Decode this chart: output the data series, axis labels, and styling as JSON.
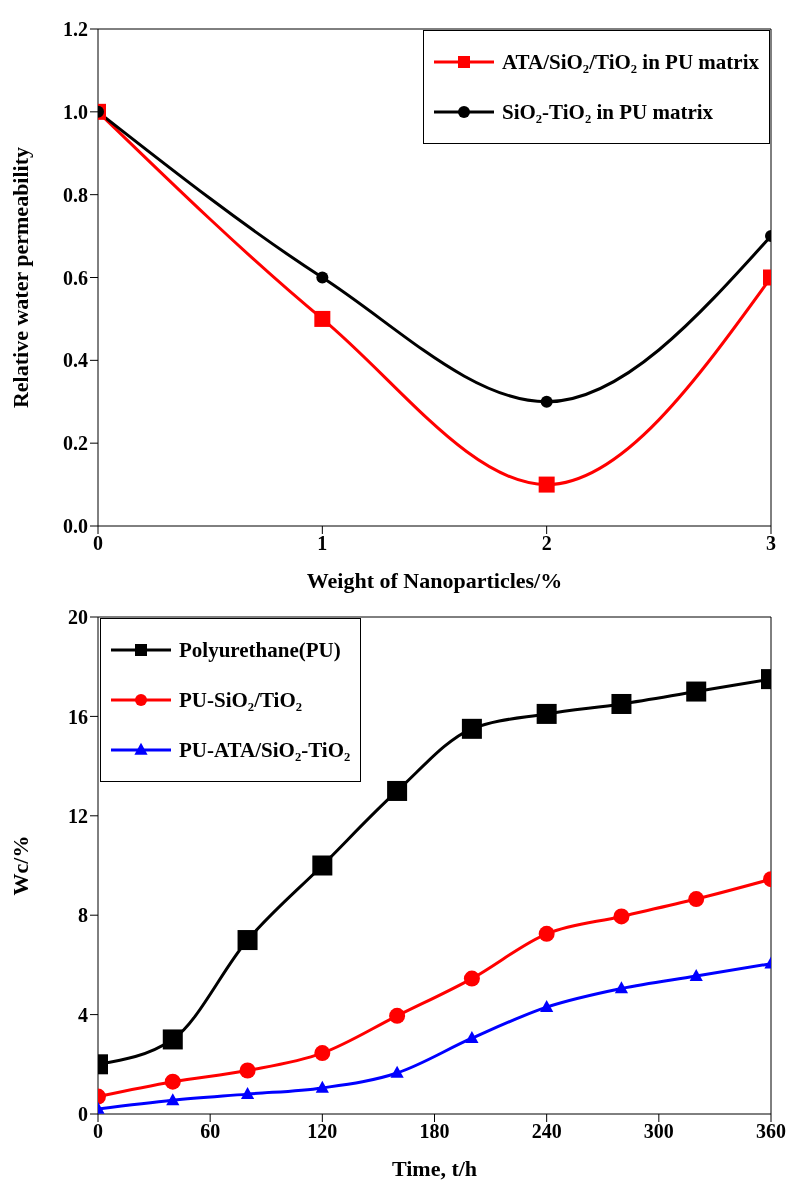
{
  "chart_data": [
    {
      "type": "line",
      "xlabel": "Weight of Nanoparticles/%",
      "ylabel": "Relative water permeability",
      "x": [
        0,
        1,
        2,
        3
      ],
      "series": [
        {
          "name": "ATA/SiO₂/TiO₂ in PU matrix",
          "color": "#ff0000",
          "marker": "square",
          "values": [
            1.0,
            0.5,
            0.1,
            0.6
          ]
        },
        {
          "name": "SiO₂-TiO₂ in PU matrix",
          "color": "#000000",
          "marker": "circle",
          "values": [
            1.0,
            0.6,
            0.3,
            0.7
          ]
        }
      ],
      "xlim": [
        0,
        3
      ],
      "xticks": [
        0,
        1,
        2,
        3
      ],
      "ylim": [
        0,
        1.2
      ],
      "yticks": [
        {
          "value": 0,
          "label": "0.0"
        },
        {
          "value": 0.2,
          "label": "0.2"
        },
        {
          "value": 0.4,
          "label": "0.4"
        },
        {
          "value": 0.6,
          "label": "0.6"
        },
        {
          "value": 0.8,
          "label": "0.8"
        },
        {
          "value": 1,
          "label": "1.0"
        },
        {
          "value": 1.2,
          "label": "1.2"
        }
      ],
      "grid": false,
      "legend": "top right",
      "line_style": "solid"
    },
    {
      "type": "line",
      "xlabel": "Time, t/h",
      "ylabel": "Wc/%",
      "x": [
        0,
        40,
        80,
        120,
        160,
        200,
        240,
        280,
        320,
        360
      ],
      "series": [
        {
          "name": "Polyurethane(PU)",
          "color": "#000000",
          "marker": "square",
          "values": [
            2.0,
            3.0,
            7.0,
            10.0,
            13.0,
            15.5,
            16.1,
            16.5,
            17.0,
            17.5
          ]
        },
        {
          "name": "PU-SiO₂/TiO₂",
          "color": "#ff0000",
          "marker": "circle",
          "values": [
            0.7,
            1.3,
            1.75,
            2.45,
            3.95,
            5.45,
            7.25,
            7.95,
            8.65,
            9.45
          ]
        },
        {
          "name": "PU-ATA/SiO₂-TiO₂",
          "color": "#0000ff",
          "marker": "triangle",
          "values": [
            0.2,
            0.55,
            0.8,
            1.05,
            1.65,
            3.05,
            4.3,
            5.05,
            5.55,
            6.05
          ]
        }
      ],
      "xlim": [
        0,
        360
      ],
      "xticks": [
        0,
        60,
        120,
        180,
        240,
        300,
        360
      ],
      "ylim": [
        0,
        20
      ],
      "yticks": [
        0,
        4,
        8,
        12,
        16,
        20
      ],
      "grid": false,
      "legend": "top left",
      "line_style": "solid"
    }
  ]
}
